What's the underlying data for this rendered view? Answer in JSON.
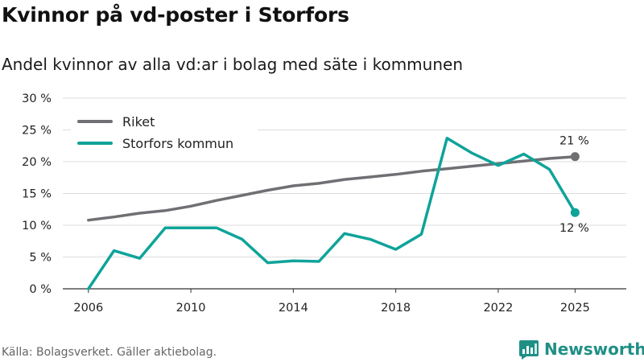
{
  "header": {
    "title": "Kvinnor på vd-poster i Storfors",
    "subtitle": "Andel kvinnor av alla vd:ar i bolag med säte i kommunen"
  },
  "footer": {
    "source": "Källa: Bolagsverket. Gäller aktiebolag.",
    "brand": "Newsworthy"
  },
  "colors": {
    "riket": "#706f73",
    "kommun": "#0fa39a",
    "grid": "#dddddd",
    "brand": "#1f8f86"
  },
  "chart_data": {
    "type": "line",
    "title": "Kvinnor på vd-poster i Storfors",
    "xlabel": "",
    "ylabel": "",
    "x": [
      2006,
      2007,
      2008,
      2009,
      2010,
      2011,
      2012,
      2013,
      2014,
      2015,
      2016,
      2017,
      2018,
      2019,
      2020,
      2021,
      2022,
      2023,
      2024,
      2025
    ],
    "xticks": [
      2006,
      2010,
      2014,
      2018,
      2022,
      2025
    ],
    "xtick_labels": [
      "2006",
      "2010",
      "2014",
      "2018",
      "2022",
      "2025"
    ],
    "ylim": [
      0,
      30
    ],
    "yticks": [
      0,
      5,
      10,
      15,
      20,
      25,
      30
    ],
    "ytick_labels": [
      "0 %",
      "5 %",
      "10 %",
      "15 %",
      "20 %",
      "25 %",
      "30 %"
    ],
    "grid": true,
    "legend_position": "top-left",
    "series": [
      {
        "name": "Riket",
        "color": "#706f73",
        "values": [
          10.8,
          11.3,
          11.9,
          12.3,
          13.0,
          13.9,
          14.7,
          15.5,
          16.2,
          16.6,
          17.2,
          17.6,
          18.0,
          18.5,
          18.9,
          19.3,
          19.7,
          20.1,
          20.5,
          20.8
        ],
        "end_label": "21 %"
      },
      {
        "name": "Storfors kommun",
        "color": "#0fa39a",
        "values": [
          0.0,
          6.0,
          4.8,
          9.6,
          9.6,
          9.6,
          7.8,
          4.1,
          4.4,
          4.3,
          8.7,
          7.8,
          6.2,
          8.6,
          23.7,
          21.3,
          19.4,
          21.2,
          18.8,
          12.0
        ],
        "end_label": "12 %"
      }
    ]
  }
}
